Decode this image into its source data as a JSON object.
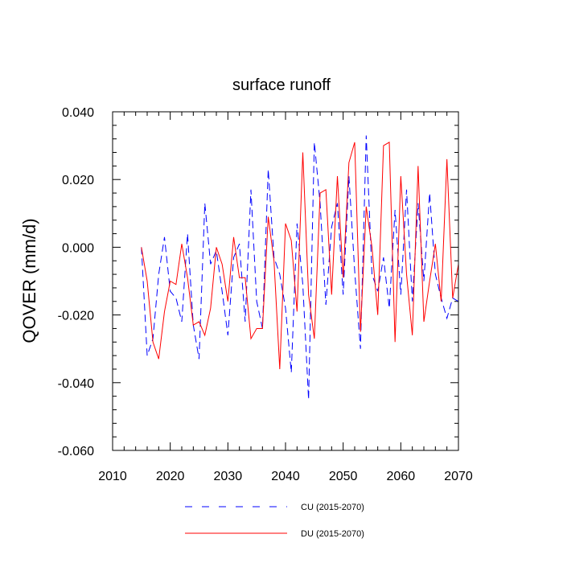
{
  "chart_data": {
    "type": "line",
    "title": "surface runoff",
    "xlabel": "",
    "ylabel": "QOVER  (mm/d)",
    "xlim": [
      2010,
      2070
    ],
    "ylim": [
      -0.06,
      0.04
    ],
    "xticks": [
      2010,
      2020,
      2030,
      2040,
      2050,
      2060,
      2070
    ],
    "xtick_labels": [
      "2010",
      "2020",
      "2030",
      "2040",
      "2050",
      "2060",
      "2070"
    ],
    "yticks": [
      -0.06,
      -0.04,
      -0.02,
      0.0,
      0.02,
      0.04
    ],
    "ytick_labels": [
      "-0.060",
      "-0.040",
      "-0.020",
      "0.000",
      "0.020",
      "0.040"
    ],
    "grid": false,
    "legend_position": "bottom",
    "x": [
      2015,
      2016,
      2017,
      2018,
      2019,
      2020,
      2021,
      2022,
      2023,
      2024,
      2025,
      2026,
      2027,
      2028,
      2029,
      2030,
      2031,
      2032,
      2033,
      2034,
      2035,
      2036,
      2037,
      2038,
      2039,
      2040,
      2041,
      2042,
      2043,
      2044,
      2045,
      2046,
      2047,
      2048,
      2049,
      2050,
      2051,
      2052,
      2053,
      2054,
      2055,
      2056,
      2057,
      2058,
      2059,
      2060,
      2061,
      2062,
      2063,
      2064,
      2065,
      2066,
      2067,
      2068,
      2069,
      2070
    ],
    "series": [
      {
        "name": "CU (2015-2070)",
        "color": "#0000ff",
        "dash": "dashed",
        "values": [
          0.0,
          -0.032,
          -0.027,
          -0.008,
          0.003,
          -0.013,
          -0.015,
          -0.022,
          0.004,
          -0.023,
          -0.033,
          0.013,
          -0.005,
          -0.001,
          -0.013,
          -0.026,
          -0.003,
          0.001,
          -0.022,
          0.017,
          -0.016,
          -0.024,
          0.023,
          -0.003,
          -0.008,
          -0.018,
          -0.037,
          0.007,
          -0.011,
          -0.045,
          0.031,
          0.013,
          -0.017,
          0.006,
          0.013,
          -0.014,
          0.021,
          -0.007,
          -0.03,
          0.033,
          -0.008,
          -0.013,
          -0.003,
          -0.018,
          0.011,
          -0.014,
          0.017,
          -0.016,
          0.013,
          -0.01,
          0.016,
          -0.008,
          -0.015,
          -0.021,
          -0.015,
          -0.016
        ]
      },
      {
        "name": "DU (2015-2070)",
        "color": "#ff0000",
        "dash": "solid",
        "values": [
          0.0,
          -0.01,
          -0.028,
          -0.033,
          -0.019,
          -0.01,
          -0.011,
          0.001,
          -0.009,
          -0.023,
          -0.022,
          -0.026,
          -0.018,
          0.0,
          -0.005,
          -0.016,
          0.003,
          -0.009,
          -0.009,
          -0.027,
          -0.024,
          -0.024,
          0.009,
          -0.004,
          -0.036,
          0.007,
          0.002,
          -0.019,
          0.028,
          -0.014,
          -0.027,
          0.016,
          0.017,
          -0.014,
          0.021,
          -0.009,
          0.025,
          0.031,
          -0.025,
          0.012,
          0.0,
          -0.02,
          0.03,
          0.031,
          -0.028,
          0.021,
          -0.008,
          -0.026,
          0.024,
          -0.022,
          -0.01,
          0.001,
          -0.016,
          0.026,
          -0.015,
          -0.005
        ]
      }
    ]
  }
}
